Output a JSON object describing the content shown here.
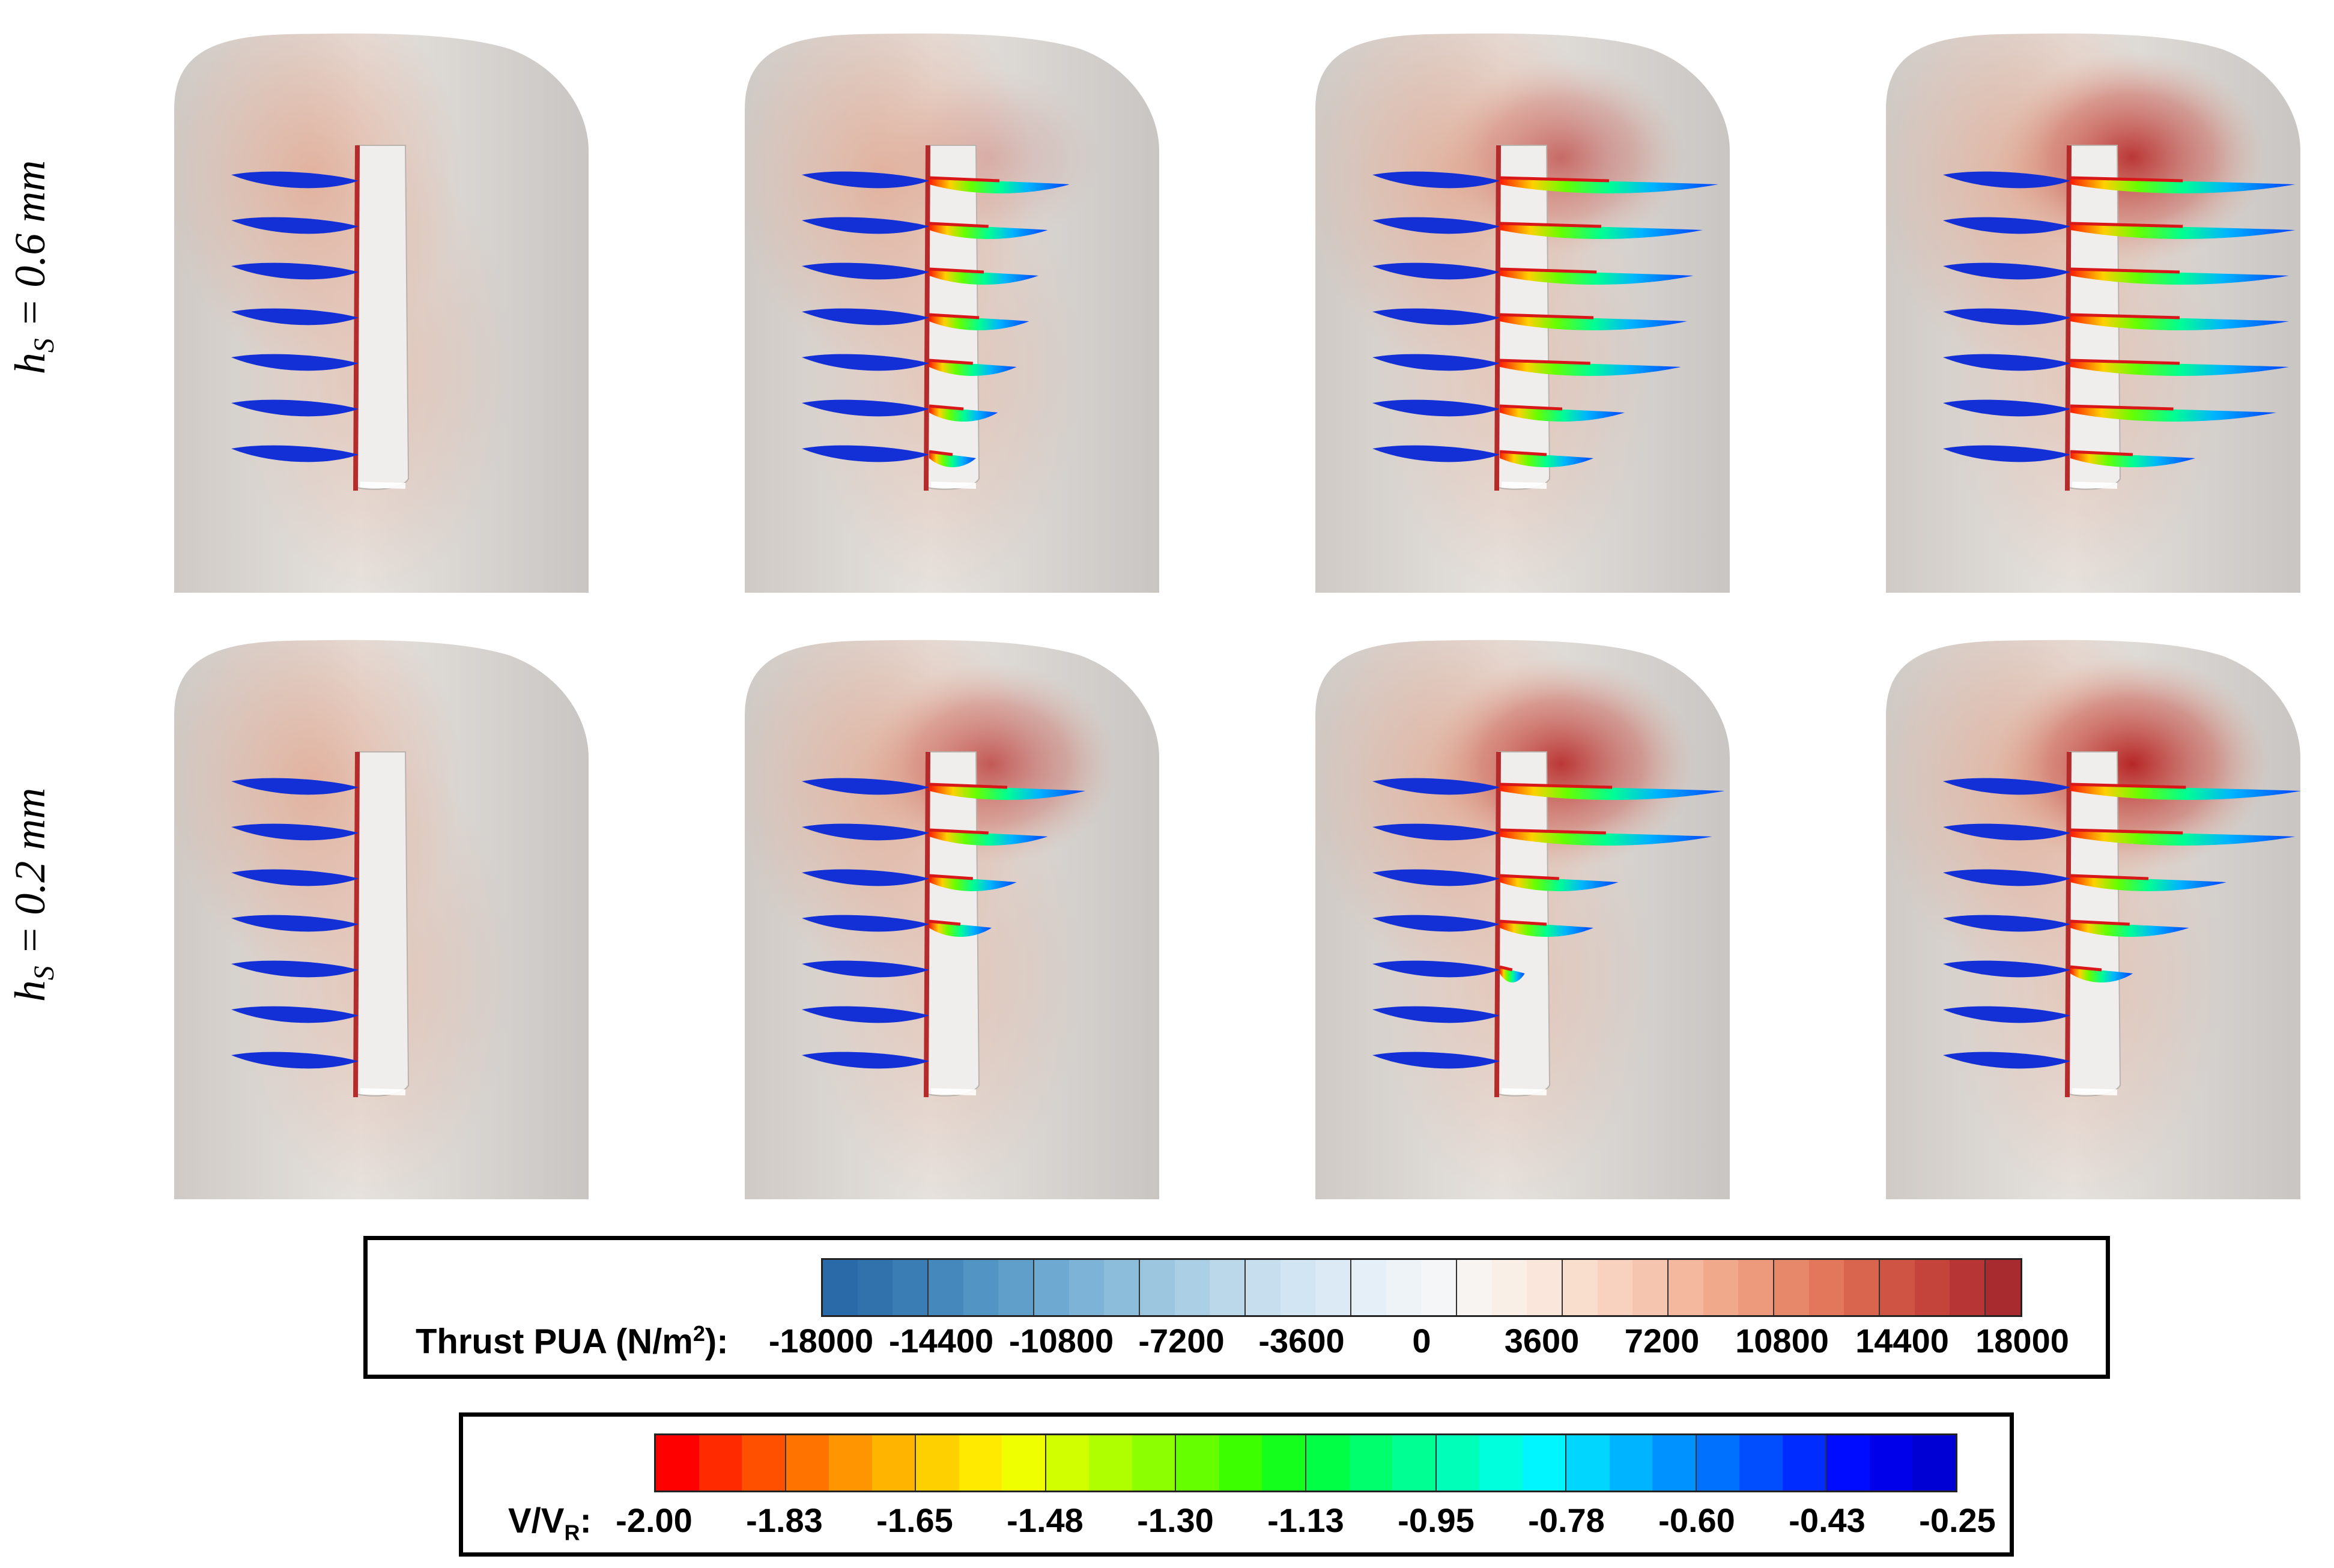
{
  "row_labels": [
    {
      "main": "h",
      "sub": "S",
      "rest": " = 0.6 mm"
    },
    {
      "main": "h",
      "sub": "S",
      "rest": " = 0.2 mm"
    }
  ],
  "panels": [
    {
      "row": 0,
      "col": 0,
      "blades": [
        0.35,
        0.38,
        0.4,
        0.42,
        0.4,
        0.37,
        0.3
      ],
      "wake": [
        0,
        0,
        0,
        0,
        0,
        0,
        0
      ],
      "glow": 0.0
    },
    {
      "row": 0,
      "col": 1,
      "blades": [
        0.35,
        0.38,
        0.4,
        0.42,
        0.4,
        0.37,
        0.3
      ],
      "wake": [
        0.45,
        0.38,
        0.35,
        0.32,
        0.28,
        0.22,
        0.15
      ],
      "glow": 0.2
    },
    {
      "row": 0,
      "col": 2,
      "blades": [
        0.35,
        0.38,
        0.4,
        0.42,
        0.4,
        0.37,
        0.3
      ],
      "wake": [
        0.7,
        0.65,
        0.62,
        0.6,
        0.58,
        0.4,
        0.3
      ],
      "glow": 0.6
    },
    {
      "row": 0,
      "col": 3,
      "blades": [
        0.35,
        0.38,
        0.4,
        0.42,
        0.4,
        0.37,
        0.3
      ],
      "wake": [
        0.72,
        0.72,
        0.7,
        0.7,
        0.7,
        0.66,
        0.4
      ],
      "glow": 0.9
    },
    {
      "row": 1,
      "col": 0,
      "blades": [
        0.35,
        0.38,
        0.4,
        0.42,
        0.4,
        0.37,
        0.3
      ],
      "wake": [
        0,
        0,
        0,
        0,
        0,
        0,
        0
      ],
      "glow": 0.0
    },
    {
      "row": 1,
      "col": 1,
      "blades": [
        0.35,
        0.38,
        0.4,
        0.42,
        0.4,
        0.37,
        0.3
      ],
      "wake": [
        0.5,
        0.38,
        0.28,
        0.2,
        0,
        0,
        0
      ],
      "glow": 0.7
    },
    {
      "row": 1,
      "col": 2,
      "blades": [
        0.35,
        0.38,
        0.4,
        0.42,
        0.4,
        0.37,
        0.3
      ],
      "wake": [
        0.72,
        0.68,
        0.38,
        0.3,
        0.08,
        0,
        0
      ],
      "glow": 0.9
    },
    {
      "row": 1,
      "col": 3,
      "blades": [
        0.35,
        0.38,
        0.4,
        0.42,
        0.4,
        0.37,
        0.3
      ],
      "wake": [
        0.74,
        0.72,
        0.5,
        0.38,
        0.2,
        0,
        0
      ],
      "glow": 1.0
    }
  ],
  "legend_thrust": {
    "title": "Thrust PUA (N/m",
    "title_sup": "2",
    "title_end": "):",
    "ticks": [
      "-18000",
      "-14400",
      "-10800",
      "-7200",
      "-3600",
      "0",
      "3600",
      "7200",
      "10800",
      "14400",
      "18000"
    ],
    "colors": [
      "#2b6aa8",
      "#3172ad",
      "#3a7db4",
      "#4588bc",
      "#5294c3",
      "#5f9fca",
      "#6da9d0",
      "#7db3d6",
      "#8cbddb",
      "#9cc6e0",
      "#abcfe5",
      "#bad8ea",
      "#c6deee",
      "#d2e5f2",
      "#dceaf5",
      "#e5eff7",
      "#eef3f8",
      "#f4f6f7",
      "#f7f4f1",
      "#f9efe7",
      "#fae6db",
      "#f9ddcd",
      "#f8d2bf",
      "#f6c5af",
      "#f4b89e",
      "#f1a98c",
      "#ed997b",
      "#e8886a",
      "#e2775b",
      "#da654e",
      "#d05443",
      "#c4443b",
      "#b73535",
      "#a82b2f"
    ],
    "tick_every": 3
  },
  "legend_velocity": {
    "title": "V/V",
    "title_sub": "R",
    "title_end": ":",
    "ticks": [
      "-2.00",
      "-1.83",
      "-1.65",
      "-1.48",
      "-1.30",
      "-1.13",
      "-0.95",
      "-0.78",
      "-0.60",
      "-0.43",
      "-0.25"
    ],
    "colors": [
      "#ff0000",
      "#ff2a00",
      "#ff5000",
      "#ff7400",
      "#ff9500",
      "#ffb400",
      "#ffd000",
      "#ffea00",
      "#f0ff00",
      "#d2ff00",
      "#b0ff00",
      "#8cff00",
      "#66ff00",
      "#3cff00",
      "#14ff1c",
      "#00ff45",
      "#00ff6c",
      "#00ff92",
      "#00ffb8",
      "#00ffdc",
      "#00f6ff",
      "#00d6ff",
      "#00b4ff",
      "#0092ff",
      "#0070ff",
      "#004eff",
      "#002cff",
      "#000cff",
      "#0000ea",
      "#0000d4"
    ],
    "tick_every": 3
  },
  "colors": {
    "hull": "#d6d1cd",
    "hull_top": "#e6e2de",
    "pressure": "#e2a78f",
    "high_pressure": "#b41e1e",
    "blade": "#1330d6",
    "plate": "#f0eeec"
  }
}
